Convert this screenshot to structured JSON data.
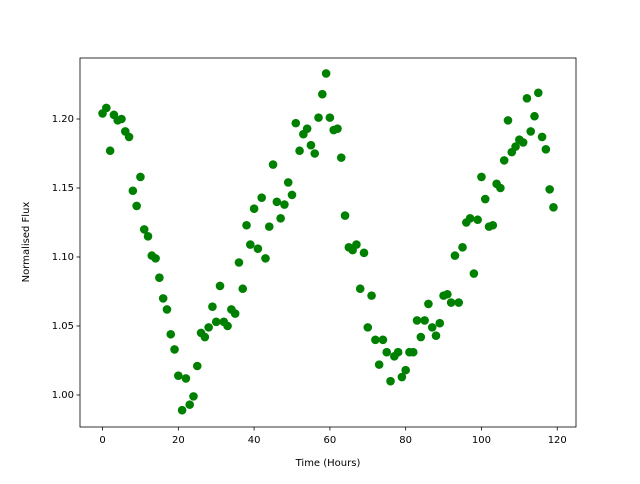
{
  "chart_data": {
    "type": "scatter",
    "xlabel": "Time (Hours)",
    "ylabel": "Normalised Flux",
    "color": "#008000",
    "x": [
      0,
      1,
      2,
      3,
      4,
      5,
      6,
      7,
      8,
      9,
      10,
      11,
      12,
      13,
      14,
      15,
      16,
      17,
      18,
      19,
      20,
      21,
      22,
      23,
      24,
      25,
      26,
      27,
      28,
      29,
      30,
      31,
      32,
      33,
      34,
      35,
      36,
      37,
      38,
      39,
      40,
      41,
      42,
      43,
      44,
      45,
      46,
      47,
      48,
      49,
      50,
      51,
      52,
      53,
      54,
      55,
      56,
      57,
      58,
      59,
      60,
      61,
      62,
      63,
      64,
      65,
      66,
      67,
      68,
      69,
      70,
      71,
      72,
      73,
      74,
      75,
      76,
      77,
      78,
      79,
      80,
      81,
      82,
      83,
      84,
      85,
      86,
      87,
      88,
      89,
      90,
      91,
      92,
      93,
      94,
      95,
      96,
      97,
      98,
      99,
      100,
      101,
      102,
      103,
      104,
      105,
      106,
      107,
      108,
      109,
      110,
      111,
      112,
      113,
      114,
      115,
      116,
      117,
      118,
      119
    ],
    "values": [
      1.204,
      1.208,
      1.177,
      1.203,
      1.199,
      1.2,
      1.191,
      1.187,
      1.148,
      1.137,
      1.158,
      1.12,
      1.115,
      1.101,
      1.099,
      1.085,
      1.07,
      1.062,
      1.044,
      1.033,
      1.014,
      0.989,
      1.012,
      0.993,
      0.999,
      1.021,
      1.045,
      1.042,
      1.049,
      1.064,
      1.053,
      1.079,
      1.053,
      1.05,
      1.062,
      1.059,
      1.096,
      1.077,
      1.123,
      1.109,
      1.135,
      1.106,
      1.143,
      1.099,
      1.122,
      1.167,
      1.14,
      1.128,
      1.138,
      1.154,
      1.145,
      1.197,
      1.177,
      1.189,
      1.193,
      1.181,
      1.175,
      1.201,
      1.218,
      1.233,
      1.201,
      1.192,
      1.193,
      1.172,
      1.13,
      1.107,
      1.105,
      1.109,
      1.077,
      1.103,
      1.049,
      1.072,
      1.04,
      1.022,
      1.04,
      1.031,
      1.01,
      1.028,
      1.031,
      1.013,
      1.018,
      1.031,
      1.031,
      1.054,
      1.042,
      1.054,
      1.066,
      1.049,
      1.043,
      1.052,
      1.072,
      1.073,
      1.067,
      1.101,
      1.067,
      1.107,
      1.125,
      1.128,
      1.088,
      1.127,
      1.158,
      1.142,
      1.122,
      1.123,
      1.153,
      1.15,
      1.17,
      1.199,
      1.176,
      1.18,
      1.185,
      1.183,
      1.215,
      1.191,
      1.202,
      1.219,
      1.187,
      1.178,
      1.149,
      1.136
    ],
    "xlim": [
      -5.95,
      124.95
    ],
    "ylim": [
      0.9768,
      1.2442
    ],
    "xticks": [
      0,
      20,
      40,
      60,
      80,
      100,
      120
    ],
    "yticks": [
      {
        "value": 1.0,
        "label": "1.00"
      },
      {
        "value": 1.05,
        "label": "1.05"
      },
      {
        "value": 1.1,
        "label": "1.10"
      },
      {
        "value": 1.15,
        "label": "1.15"
      },
      {
        "value": 1.2,
        "label": "1.20"
      }
    ]
  }
}
